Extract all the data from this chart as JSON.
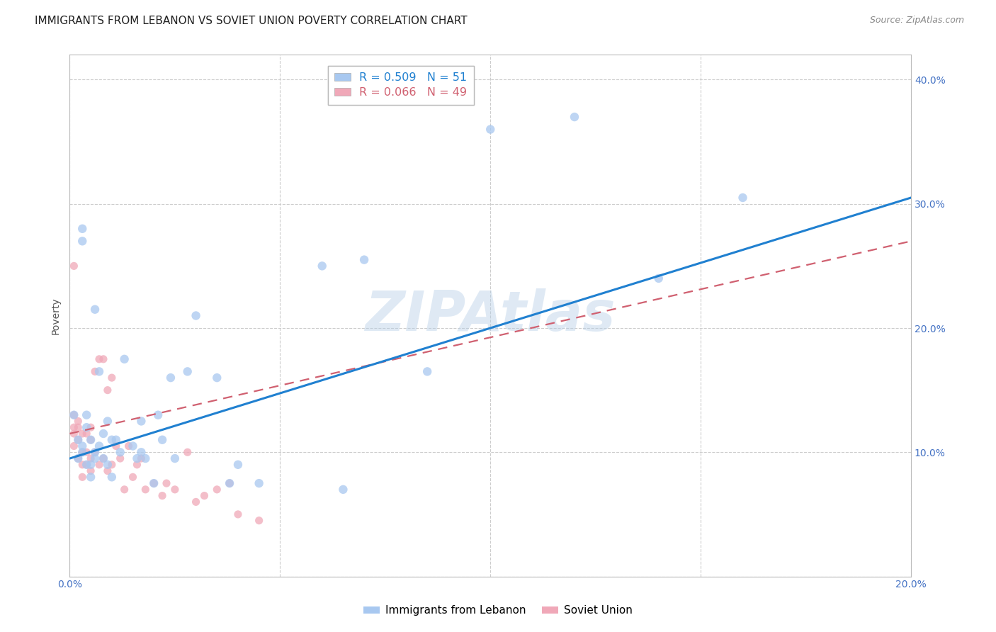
{
  "title": "IMMIGRANTS FROM LEBANON VS SOVIET UNION POVERTY CORRELATION CHART",
  "source": "Source: ZipAtlas.com",
  "ylabel": "Poverty",
  "watermark": "ZIPAtlas",
  "legend_blue_r": "R = 0.509",
  "legend_blue_n": "N = 51",
  "legend_pink_r": "R = 0.066",
  "legend_pink_n": "N = 49",
  "legend_blue_label": "Immigrants from Lebanon",
  "legend_pink_label": "Soviet Union",
  "xmin": 0.0,
  "xmax": 0.2,
  "ymin": 0.0,
  "ymax": 0.42,
  "yticks": [
    0.0,
    0.1,
    0.2,
    0.3,
    0.4
  ],
  "xticks": [
    0.0,
    0.05,
    0.1,
    0.15,
    0.2
  ],
  "blue_color": "#A8C8F0",
  "pink_color": "#F0A8B8",
  "trendline_blue_color": "#2080D0",
  "trendline_pink_color": "#D06070",
  "blue_trend_x": [
    0.0,
    0.2
  ],
  "blue_trend_y": [
    0.095,
    0.305
  ],
  "pink_trend_x": [
    0.0,
    0.2
  ],
  "pink_trend_y": [
    0.115,
    0.27
  ],
  "blue_scatter_x": [
    0.001,
    0.002,
    0.002,
    0.003,
    0.003,
    0.003,
    0.004,
    0.004,
    0.005,
    0.005,
    0.006,
    0.006,
    0.007,
    0.007,
    0.008,
    0.008,
    0.009,
    0.009,
    0.01,
    0.01,
    0.011,
    0.012,
    0.013,
    0.015,
    0.016,
    0.017,
    0.017,
    0.018,
    0.02,
    0.021,
    0.022,
    0.024,
    0.025,
    0.028,
    0.03,
    0.035,
    0.038,
    0.04,
    0.045,
    0.06,
    0.065,
    0.07,
    0.085,
    0.1,
    0.12,
    0.14,
    0.16,
    0.003,
    0.004,
    0.005,
    0.006
  ],
  "blue_scatter_y": [
    0.13,
    0.11,
    0.095,
    0.28,
    0.27,
    0.105,
    0.12,
    0.13,
    0.09,
    0.11,
    0.215,
    0.095,
    0.165,
    0.105,
    0.115,
    0.095,
    0.125,
    0.09,
    0.11,
    0.08,
    0.11,
    0.1,
    0.175,
    0.105,
    0.095,
    0.125,
    0.1,
    0.095,
    0.075,
    0.13,
    0.11,
    0.16,
    0.095,
    0.165,
    0.21,
    0.16,
    0.075,
    0.09,
    0.075,
    0.25,
    0.07,
    0.255,
    0.165,
    0.36,
    0.37,
    0.24,
    0.305,
    0.1,
    0.09,
    0.08,
    0.1
  ],
  "pink_scatter_x": [
    0.001,
    0.001,
    0.001,
    0.001,
    0.002,
    0.002,
    0.002,
    0.002,
    0.003,
    0.003,
    0.003,
    0.003,
    0.004,
    0.004,
    0.004,
    0.005,
    0.005,
    0.005,
    0.005,
    0.006,
    0.006,
    0.007,
    0.007,
    0.008,
    0.008,
    0.009,
    0.009,
    0.01,
    0.01,
    0.011,
    0.012,
    0.013,
    0.014,
    0.015,
    0.016,
    0.017,
    0.018,
    0.02,
    0.022,
    0.023,
    0.025,
    0.028,
    0.03,
    0.032,
    0.035,
    0.038,
    0.04,
    0.045,
    0.001
  ],
  "pink_scatter_y": [
    0.12,
    0.13,
    0.115,
    0.105,
    0.125,
    0.11,
    0.095,
    0.12,
    0.08,
    0.1,
    0.115,
    0.09,
    0.1,
    0.115,
    0.09,
    0.095,
    0.12,
    0.085,
    0.11,
    0.1,
    0.165,
    0.09,
    0.175,
    0.175,
    0.095,
    0.085,
    0.15,
    0.09,
    0.16,
    0.105,
    0.095,
    0.07,
    0.105,
    0.08,
    0.09,
    0.095,
    0.07,
    0.075,
    0.065,
    0.075,
    0.07,
    0.1,
    0.06,
    0.065,
    0.07,
    0.075,
    0.05,
    0.045,
    0.25
  ],
  "blue_marker_size": 80,
  "pink_marker_size": 65,
  "title_fontsize": 11,
  "source_fontsize": 9,
  "tick_fontsize": 10,
  "ylabel_fontsize": 10
}
